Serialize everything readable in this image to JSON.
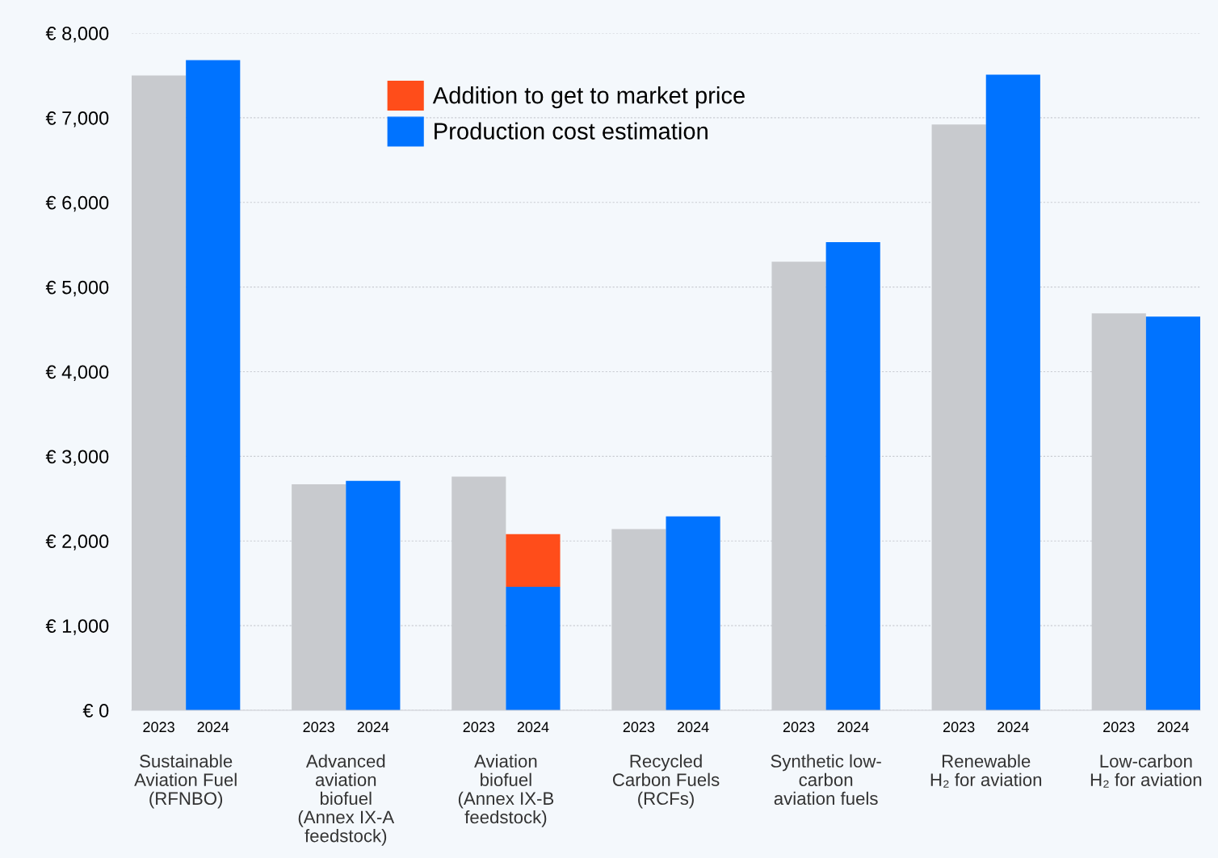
{
  "chart_data": {
    "type": "bar",
    "stacked": true,
    "categories": [
      "2023",
      "2024",
      "2023",
      "2024",
      "2023",
      "2024",
      "2023",
      "2024",
      "2023",
      "2024",
      "2023",
      "2024",
      "2023",
      "2024"
    ],
    "series": [
      {
        "name": "Production cost estimation",
        "color": "#0073ff",
        "colors": [
          "#c8cace",
          "#0073ff",
          "#c8cace",
          "#0073ff",
          "#c8cace",
          "#0073ff",
          "#c8cace",
          "#0073ff",
          "#c8cace",
          "#0073ff",
          "#c8cace",
          "#0073ff",
          "#c8cace",
          "#0073ff"
        ],
        "values": [
          7500,
          7680,
          2670,
          2710,
          2760,
          1460,
          2140,
          2290,
          5300,
          5530,
          6920,
          7510,
          4690,
          4650
        ]
      },
      {
        "name": "Addition to get to market price",
        "color": "#ff4d1a",
        "values": [
          null,
          null,
          null,
          null,
          null,
          620,
          null,
          null,
          null,
          null,
          null,
          null,
          null,
          null
        ]
      }
    ],
    "annotations": [
      "Sustainable\nAviation Fuel\n(RFNBO)",
      "Advanced\naviation\nbiofuel\n(Annex IX-A\nfeedstock)",
      "Aviation\nbiofuel\n(Annex IX-B\nfeedstock)",
      "Recycled\nCarbon Fuels\n(RCFs)",
      "Synthetic low-\ncarbon\naviation fuels",
      "Renewable\nH₂ for aviation",
      "Low-carbon\nH₂ for aviation"
    ],
    "ylim": [
      0,
      8000
    ],
    "yticks": [
      {
        "value": 0,
        "label": "€ 0"
      },
      {
        "value": 1000,
        "label": "€ 1,000"
      },
      {
        "value": 2000,
        "label": "€ 2,000"
      },
      {
        "value": 3000,
        "label": "€ 3,000"
      },
      {
        "value": 4000,
        "label": "€ 4,000"
      },
      {
        "value": 5000,
        "label": "€ 5,000"
      },
      {
        "value": 6000,
        "label": "€ 6,000"
      },
      {
        "value": 7000,
        "label": "€ 7,000"
      },
      {
        "value": 8000,
        "label": "€ 8,000"
      }
    ],
    "grid": "y",
    "legend": "top"
  }
}
